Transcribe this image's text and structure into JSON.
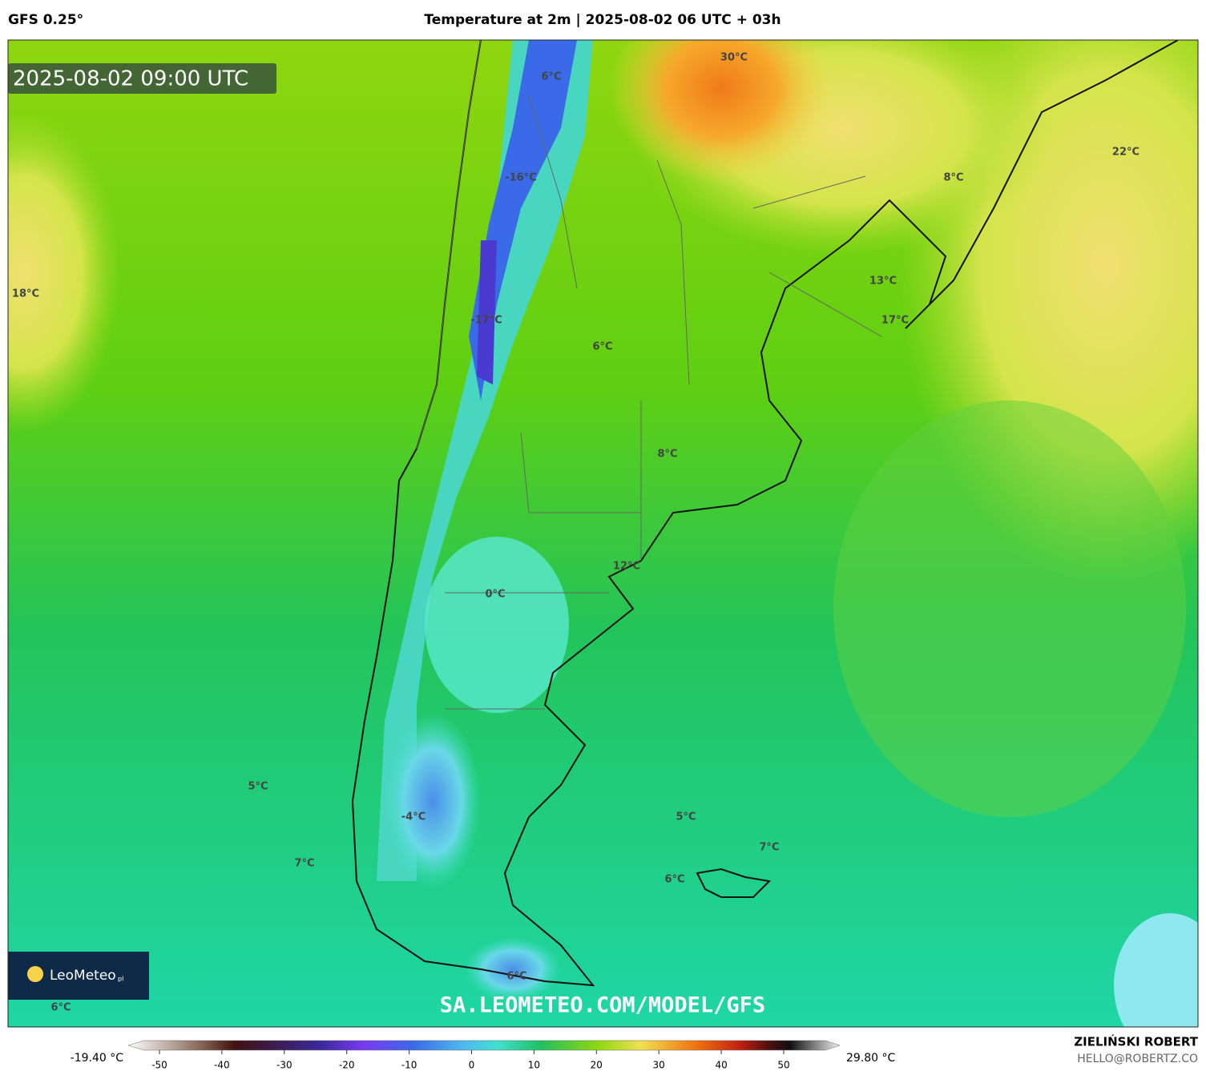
{
  "header": {
    "model": "GFS 0.25°",
    "title": "Temperature at 2m | 2025-08-02 06 UTC + 03h"
  },
  "map": {
    "valid_time": "2025-08-02 09:00 UTC",
    "labels": [
      "30°C",
      "6°C",
      "22°C",
      "8°C",
      "-16°C",
      "18°C",
      "13°C",
      "17°C",
      "-17°C",
      "6°C",
      "8°C",
      "12°C",
      "0°C",
      "5°C",
      "5°C",
      "-4°C",
      "7°C",
      "7°C",
      "6°C",
      "6°C",
      "6°C"
    ],
    "watermark": "SA.LEOMETEO.COM/MODEL/GFS",
    "logo": {
      "name": "LeoMeteo",
      "suffix": "pl"
    }
  },
  "colorbar": {
    "min_label": "-19.40 °C",
    "max_label": "29.80 °C",
    "ticks": [
      -50,
      -40,
      -30,
      -20,
      -10,
      0,
      10,
      20,
      30,
      40,
      50
    ]
  },
  "footer": {
    "author": "ZIELIŃSKI ROBERT",
    "email": "HELLO@ROBERTZ.CO"
  }
}
